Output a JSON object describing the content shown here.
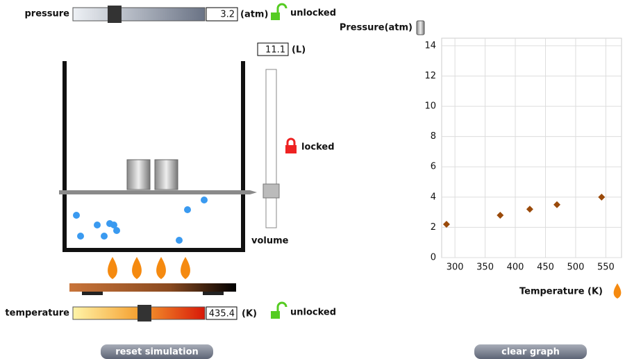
{
  "controls": {
    "pressure": {
      "label": "pressure",
      "value": 3.2,
      "unit": "(atm)",
      "lock": "unlocked"
    },
    "volume": {
      "label": "volume",
      "value": 11.1,
      "unit": "(L)",
      "lock": "locked"
    },
    "temperature": {
      "label": "temperature",
      "value": 435.4,
      "unit": "(K)",
      "lock": "unlocked"
    }
  },
  "buttons": {
    "reset": "reset simulation",
    "clear": "clear graph"
  },
  "chart_data": {
    "type": "scatter",
    "ylabel": "Pressure(atm)",
    "xlabel": "Temperature (K)",
    "x": [
      286,
      375,
      424,
      469,
      543
    ],
    "values": [
      2.2,
      2.8,
      3.2,
      3.5,
      4.0
    ],
    "color": "#9a4a0a",
    "xlim": [
      278,
      576
    ],
    "ylim": [
      0,
      14.5
    ],
    "xticks": [
      300,
      350,
      400,
      450,
      500,
      550
    ],
    "yticks": [
      0,
      2,
      4,
      6,
      8,
      10,
      12,
      14
    ],
    "grid": true
  }
}
